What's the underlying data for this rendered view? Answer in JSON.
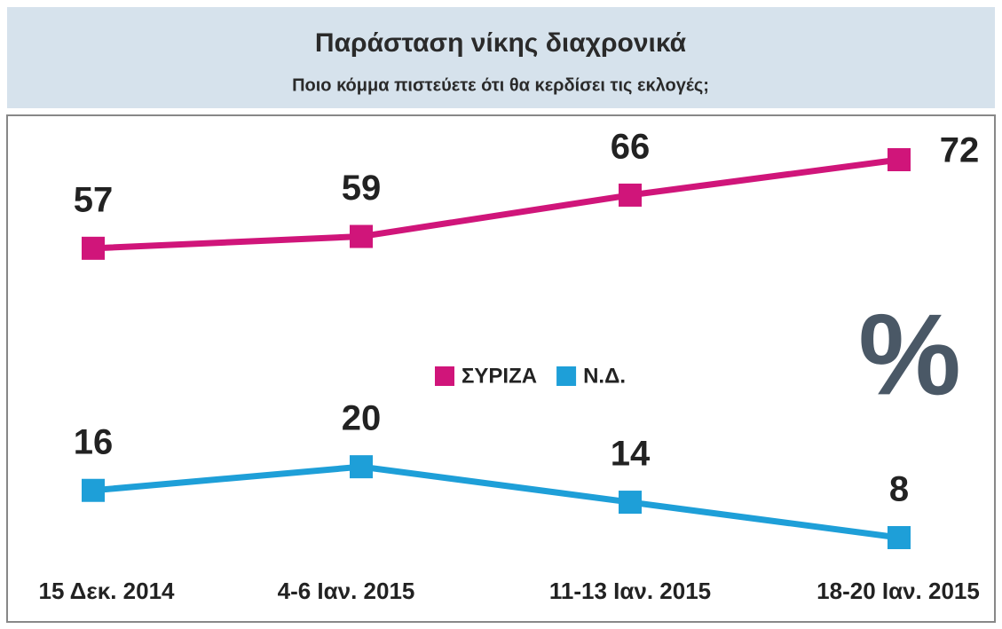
{
  "chart_data": {
    "type": "line",
    "title": "Παράσταση νίκης διαχρονικά",
    "subtitle": "Ποιο κόμμα πιστεύετε ότι θα κερδίσει τις εκλογές;",
    "annotation": "%",
    "categories": [
      "15 Δεκ.  2014",
      "4-6 Ιαν. 2015",
      "11-13 Ιαν. 2015",
      "18-20 Ιαν. 2015"
    ],
    "series": [
      {
        "name": "ΣΥΡΙΖΑ",
        "color": "#d0157a",
        "values": [
          57,
          59,
          66,
          72
        ]
      },
      {
        "name": "Ν.Δ.",
        "color": "#1e9fd8",
        "values": [
          16,
          20,
          14,
          8
        ]
      }
    ],
    "legend": "center"
  }
}
